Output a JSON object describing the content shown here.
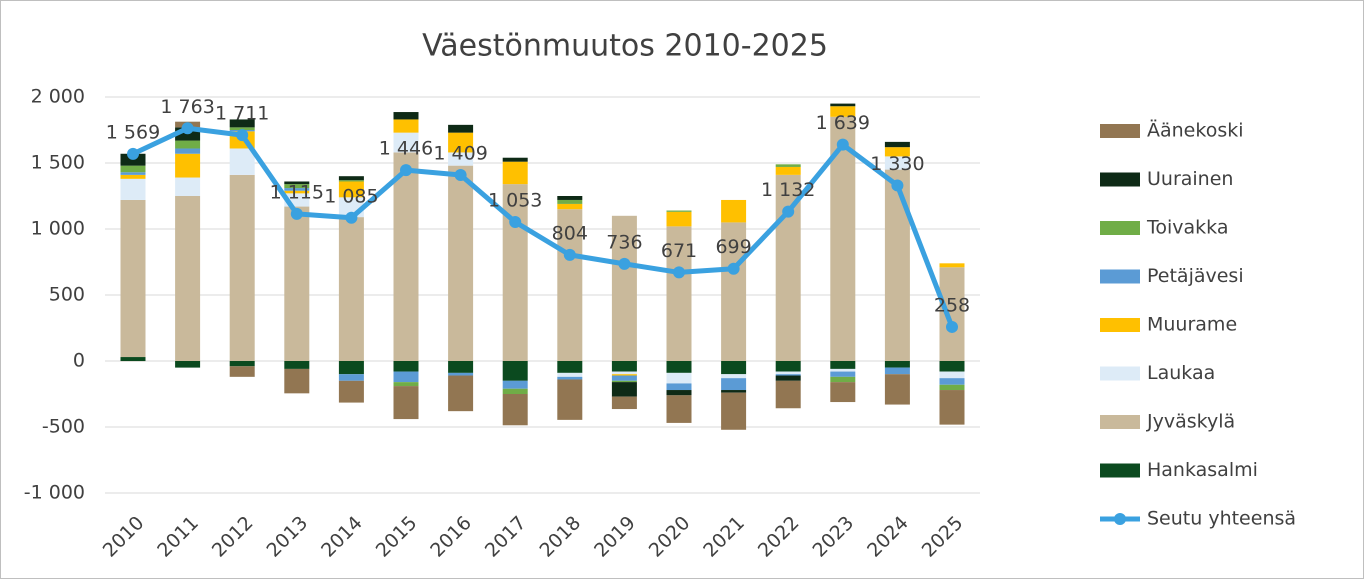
{
  "chart_data": {
    "type": "bar",
    "stacked": true,
    "title": "Väestönmuutos 2010-2025",
    "categories": [
      "2010",
      "2011",
      "2012",
      "2013",
      "2014",
      "2015",
      "2016",
      "2017",
      "2018",
      "2019",
      "2020",
      "2021",
      "2022",
      "2023",
      "2024",
      "2025"
    ],
    "ylim": [
      -1000,
      2000
    ],
    "yticks": [
      {
        "value": -1000,
        "label": "-1 000"
      },
      -500,
      0,
      500,
      {
        "value": 1000,
        "label": "1 000"
      },
      {
        "value": 1500,
        "label": "1 500"
      },
      {
        "value": 2000,
        "label": "2 000"
      }
    ],
    "grid": true,
    "legend": "right",
    "series": [
      {
        "name": "Äänekoski",
        "type": "bar",
        "color": "#927652",
        "values": [
          -1,
          43,
          -80,
          -185,
          -165,
          -250,
          -270,
          -237,
          -306,
          -94,
          -209,
          -281,
          -208,
          -151,
          -230,
          -262
        ]
      },
      {
        "name": "Uurainen",
        "type": "bar",
        "color": "#0e2a16",
        "values": [
          90,
          100,
          60,
          20,
          30,
          56,
          59,
          30,
          30,
          -110,
          -40,
          -20,
          -40,
          20,
          40,
          0
        ]
      },
      {
        "name": "Toivakka",
        "type": "bar",
        "color": "#70ad47",
        "values": [
          50,
          60,
          20,
          30,
          10,
          -30,
          0,
          -40,
          30,
          -10,
          10,
          0,
          20,
          -40,
          0,
          -40
        ]
      },
      {
        "name": "Petäjävesi",
        "type": "bar",
        "color": "#5b9bd5",
        "values": [
          20,
          40,
          10,
          20,
          -50,
          -80,
          -20,
          -60,
          -20,
          -40,
          -50,
          -90,
          -10,
          -40,
          -50,
          -50
        ]
      },
      {
        "name": "Muurame",
        "type": "bar",
        "color": "#ffc000",
        "values": [
          30,
          180,
          130,
          20,
          120,
          100,
          150,
          170,
          40,
          -10,
          110,
          170,
          60,
          80,
          70,
          30
        ]
      },
      {
        "name": "Laukaa",
        "type": "bar",
        "color": "#ddebf7",
        "values": [
          160,
          140,
          200,
          100,
          150,
          150,
          100,
          0,
          -30,
          -20,
          -80,
          -30,
          -20,
          -20,
          100,
          -50
        ]
      },
      {
        "name": "Jyväskylä",
        "type": "bar",
        "color": "#c9b99b",
        "values": [
          1190,
          1250,
          1410,
          1170,
          1090,
          1580,
          1480,
          1340,
          1150,
          1100,
          1020,
          1050,
          1410,
          1850,
          1450,
          710
        ]
      },
      {
        "name": "Hankasalmi",
        "type": "bar",
        "color": "#0b4a1f",
        "values": [
          30,
          -50,
          -40,
          -60,
          -100,
          -80,
          -90,
          -150,
          -90,
          -80,
          -90,
          -100,
          -80,
          -60,
          -50,
          -80
        ]
      },
      {
        "name": "Seutu yhteensä",
        "type": "line",
        "color": "#3aa1e0",
        "values": [
          1569,
          1763,
          1711,
          1115,
          1085,
          1446,
          1409,
          1053,
          804,
          736,
          671,
          699,
          1132,
          1639,
          1330,
          258
        ],
        "value_labels": [
          "1 569",
          "1 763",
          "1 711",
          "1 115",
          "1 085",
          "1 446",
          "1 409",
          "1 053",
          "804",
          "736",
          "671",
          "699",
          "1 132",
          "1 639",
          "1 330",
          "258"
        ]
      }
    ]
  }
}
